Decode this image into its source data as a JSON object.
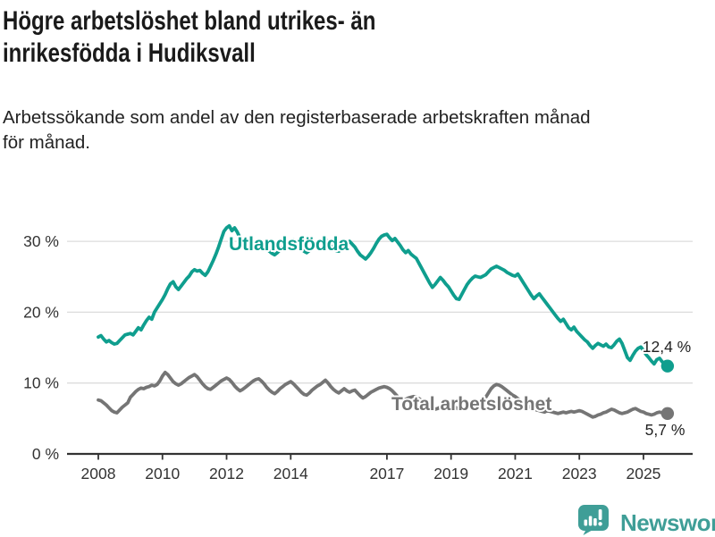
{
  "header": {
    "title_lines": [
      "Högre arbetslöshet bland utrikes- än",
      "inrikesfödda i Hudiksvall"
    ],
    "subtitle_lines": [
      "Arbetssökande som andel av den registerbaserade arbetskraften månad",
      "för månad."
    ]
  },
  "footer": {
    "brand": "Newsworthy",
    "logo_icon": "bar-chart-speech-bubble-icon",
    "brand_color": "#3f9e97"
  },
  "colors": {
    "accent_teal": "#0f9e8e",
    "series_gray": "#757575",
    "grid": "#dcdcdc",
    "axis": "#333333",
    "tick_text": "#333333",
    "value_label_text": "#222222"
  },
  "chart_data": {
    "type": "line",
    "title": "Högre arbetslöshet bland utrikes- än inrikesfödda i Hudiksvall",
    "subtitle": "Arbetssökande som andel av den registerbaserade arbetskraften månad för månad.",
    "x_start": "2008-01",
    "x_end": "2025-10",
    "x_interval": "month",
    "ylim": [
      0,
      34
    ],
    "grid": "horizontal",
    "legend": "inline-labels",
    "yticks": [
      {
        "value": 0,
        "label": "0 %"
      },
      {
        "value": 10,
        "label": "10 %"
      },
      {
        "value": 20,
        "label": "20 %"
      },
      {
        "value": 30,
        "label": "30 %"
      }
    ],
    "xticks": [
      {
        "year": 2008,
        "label": "2008"
      },
      {
        "year": 2010,
        "label": "2010"
      },
      {
        "year": 2012,
        "label": "2012"
      },
      {
        "year": 2014,
        "label": "2014"
      },
      {
        "year": 2017,
        "label": "2017"
      },
      {
        "year": 2019,
        "label": "2019"
      },
      {
        "year": 2021,
        "label": "2021"
      },
      {
        "year": 2023,
        "label": "2023"
      },
      {
        "year": 2025,
        "label": "2025"
      }
    ],
    "series": [
      {
        "name": "Utlandsfödda",
        "color": "#0f9e8e",
        "end_label": "12,4 %",
        "end_value": 12.4,
        "values": [
          16.5,
          16.7,
          16.2,
          15.8,
          16.0,
          15.7,
          15.5,
          15.6,
          16.0,
          16.4,
          16.8,
          16.9,
          17.0,
          16.8,
          17.3,
          17.8,
          17.5,
          18.2,
          18.8,
          19.3,
          19.0,
          20.0,
          20.6,
          21.2,
          21.8,
          22.5,
          23.3,
          24.0,
          24.3,
          23.6,
          23.2,
          23.7,
          24.2,
          24.7,
          25.1,
          25.7,
          26.0,
          25.8,
          25.9,
          25.5,
          25.2,
          25.7,
          26.5,
          27.3,
          28.2,
          29.2,
          30.3,
          31.4,
          31.9,
          32.2,
          31.5,
          31.9,
          31.3,
          30.5,
          29.8,
          29.2,
          29.0,
          29.4,
          29.7,
          29.3,
          29.6,
          29.9,
          29.4,
          29.0,
          28.6,
          28.3,
          28.1,
          28.4,
          28.8,
          29.2,
          29.5,
          29.8,
          30.0,
          30.2,
          29.7,
          29.3,
          28.9,
          28.6,
          28.4,
          28.7,
          29.1,
          29.5,
          29.8,
          30.0,
          30.1,
          30.3,
          29.8,
          29.4,
          29.0,
          28.7,
          28.6,
          28.9,
          29.3,
          29.7,
          30.0,
          29.6,
          29.2,
          28.6,
          28.1,
          27.8,
          27.5,
          27.9,
          28.4,
          29.0,
          29.7,
          30.3,
          30.7,
          30.9,
          31.0,
          30.5,
          30.1,
          30.4,
          29.9,
          29.4,
          28.8,
          28.4,
          28.7,
          28.2,
          27.9,
          27.6,
          26.9,
          26.2,
          25.5,
          24.8,
          24.1,
          23.5,
          23.9,
          24.4,
          24.9,
          24.5,
          24.0,
          23.6,
          23.0,
          22.4,
          21.9,
          21.8,
          22.5,
          23.2,
          23.9,
          24.4,
          24.8,
          25.1,
          25.0,
          24.9,
          25.1,
          25.3,
          25.7,
          26.1,
          26.3,
          26.5,
          26.3,
          26.1,
          25.9,
          25.6,
          25.4,
          25.2,
          25.1,
          25.4,
          24.8,
          24.2,
          23.6,
          23.0,
          22.4,
          21.9,
          22.3,
          22.6,
          22.1,
          21.6,
          21.1,
          20.6,
          20.1,
          19.6,
          19.1,
          18.7,
          19.0,
          18.4,
          17.8,
          17.5,
          17.9,
          17.3,
          16.9,
          16.5,
          16.1,
          15.8,
          15.3,
          14.9,
          15.3,
          15.6,
          15.4,
          15.2,
          15.5,
          15.1,
          15.0,
          15.4,
          15.9,
          16.2,
          15.6,
          14.6,
          13.6,
          13.2,
          13.9,
          14.5,
          14.9,
          15.1,
          14.6,
          14.0,
          13.6,
          13.1,
          12.7,
          13.3,
          13.5,
          13.0,
          12.7,
          12.4
        ]
      },
      {
        "name": "Total arbetslöshet",
        "color": "#757575",
        "end_label": "5,7 %",
        "end_value": 5.7,
        "values": [
          7.6,
          7.5,
          7.2,
          6.9,
          6.5,
          6.1,
          5.9,
          5.8,
          6.2,
          6.6,
          6.9,
          7.2,
          8.0,
          8.4,
          8.8,
          9.1,
          9.3,
          9.2,
          9.4,
          9.5,
          9.7,
          9.6,
          9.8,
          10.3,
          11.0,
          11.5,
          11.2,
          10.7,
          10.2,
          9.9,
          9.7,
          9.9,
          10.2,
          10.5,
          10.8,
          11.0,
          11.2,
          10.9,
          10.4,
          9.9,
          9.5,
          9.2,
          9.1,
          9.4,
          9.7,
          10.0,
          10.3,
          10.5,
          10.7,
          10.5,
          10.1,
          9.6,
          9.2,
          8.9,
          9.1,
          9.4,
          9.7,
          10.0,
          10.3,
          10.5,
          10.6,
          10.3,
          9.9,
          9.4,
          9.0,
          8.7,
          8.5,
          8.8,
          9.2,
          9.5,
          9.8,
          10.0,
          10.2,
          9.9,
          9.5,
          9.1,
          8.7,
          8.4,
          8.3,
          8.6,
          9.0,
          9.3,
          9.6,
          9.8,
          10.1,
          10.4,
          10.0,
          9.5,
          9.1,
          8.8,
          8.6,
          8.9,
          9.2,
          8.9,
          8.7,
          8.9,
          9.0,
          8.6,
          8.2,
          7.9,
          8.1,
          8.4,
          8.7,
          8.9,
          9.1,
          9.3,
          9.4,
          9.5,
          9.4,
          9.2,
          8.9,
          8.5,
          8.1,
          7.8,
          7.6,
          7.7,
          7.9,
          8.0,
          8.1,
          8.0,
          7.8,
          7.5,
          7.2,
          6.9,
          6.6,
          6.4,
          6.3,
          6.4,
          6.6,
          6.7,
          6.8,
          6.7,
          6.9,
          6.7,
          6.5,
          6.3,
          6.2,
          6.4,
          6.6,
          6.8,
          7.0,
          7.1,
          7.2,
          7.3,
          7.6,
          8.0,
          8.6,
          9.2,
          9.6,
          9.8,
          9.7,
          9.5,
          9.2,
          8.9,
          8.6,
          8.3,
          8.1,
          7.8,
          7.5,
          7.2,
          6.9,
          6.7,
          6.5,
          6.3,
          6.2,
          6.1,
          6.0,
          5.9,
          6.1,
          6.0,
          5.9,
          5.8,
          5.7,
          5.8,
          5.9,
          5.8,
          5.9,
          6.0,
          5.9,
          6.0,
          6.1,
          6.0,
          5.8,
          5.6,
          5.4,
          5.2,
          5.3,
          5.5,
          5.6,
          5.8,
          5.9,
          6.1,
          6.3,
          6.2,
          6.0,
          5.8,
          5.7,
          5.8,
          5.9,
          6.1,
          6.3,
          6.4,
          6.2,
          6.0,
          5.9,
          5.7,
          5.6,
          5.5,
          5.6,
          5.8,
          5.9,
          5.8,
          5.7,
          5.7
        ]
      }
    ]
  }
}
